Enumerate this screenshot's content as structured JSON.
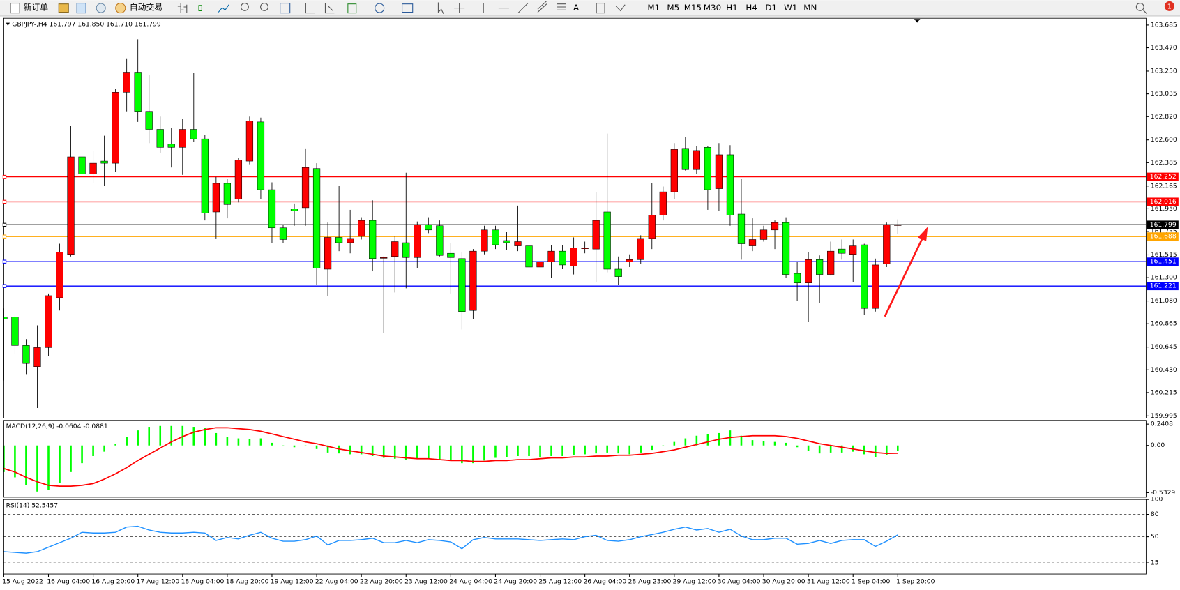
{
  "toolbar": {
    "new_order": "新订单",
    "auto_trade": "自动交易",
    "timeframes": [
      "M1",
      "M5",
      "M15",
      "M30",
      "H1",
      "H4",
      "D1",
      "W1",
      "MN"
    ],
    "badge": "1"
  },
  "chart_data": [
    {
      "type": "candlestick",
      "title": "GBPJPY-,H4 161.797 161.850 161.710 161.799",
      "categories": [
        "15 Aug 2022",
        null,
        null,
        null,
        "16 Aug 04:00",
        null,
        null,
        null,
        "16 Aug 20:00",
        null,
        null,
        null,
        "17 Aug 12:00",
        null,
        null,
        null,
        "18 Aug 04:00",
        null,
        null,
        null,
        "18 Aug 20:00",
        null,
        null,
        null,
        "19 Aug 12:00",
        null,
        null,
        null,
        "22 Aug 04:00",
        null,
        null,
        null,
        "22 Aug 20:00",
        null,
        null,
        null,
        "23 Aug 12:00",
        null,
        null,
        null,
        "24 Aug 04:00",
        null,
        null,
        null,
        "24 Aug 20:00",
        null,
        null,
        null,
        "25 Aug 12:00",
        null,
        null,
        null,
        "26 Aug 04:00",
        null,
        null,
        null,
        "28 Aug 23:00",
        null,
        null,
        null,
        "29 Aug 12:00",
        null,
        null,
        null,
        "30 Aug 04:00",
        null,
        null,
        null,
        "30 Aug 20:00",
        null,
        null,
        null,
        "31 Aug 12:00",
        null,
        null,
        null,
        "1 Sep 04:00",
        null,
        null,
        null,
        "1 Sep 20:00"
      ],
      "open": [
        160.93,
        160.93,
        160.66,
        160.46,
        160.64,
        161.11,
        161.52,
        162.44,
        162.28,
        162.4,
        162.38,
        163.05,
        163.24,
        162.87,
        162.7,
        162.56,
        162.53,
        162.7,
        162.61,
        161.92,
        162.19,
        162.04,
        162.4,
        162.77,
        162.13,
        161.77,
        161.95,
        161.96,
        162.33,
        161.38,
        161.68,
        161.63,
        161.69,
        161.84,
        161.49,
        161.5,
        161.63,
        161.49,
        161.8,
        161.79,
        161.53,
        161.48,
        160.99,
        161.55,
        161.75,
        161.65,
        161.6,
        161.6,
        161.4,
        161.45,
        161.55,
        161.41,
        161.58,
        161.57,
        161.92,
        161.38,
        161.45,
        161.47,
        161.67,
        161.89,
        162.11,
        162.52,
        162.32,
        162.53,
        162.14,
        162.46,
        161.9,
        161.6,
        161.66,
        161.75,
        161.82,
        161.34,
        161.25,
        161.47,
        161.33,
        161.57,
        161.52,
        161.61,
        161.01,
        161.43,
        161.797
      ],
      "high": [
        161.01,
        160.95,
        160.72,
        160.85,
        161.15,
        161.62,
        162.73,
        162.53,
        162.5,
        162.64,
        163.08,
        163.37,
        163.55,
        163.21,
        162.82,
        162.71,
        162.8,
        163.23,
        162.65,
        162.25,
        162.23,
        162.43,
        162.82,
        162.81,
        162.2,
        161.8,
        162.0,
        162.52,
        162.38,
        161.82,
        162.17,
        161.94,
        161.87,
        162.03,
        161.5,
        161.69,
        162.29,
        161.83,
        161.87,
        161.84,
        161.63,
        161.54,
        161.57,
        161.79,
        161.79,
        161.73,
        161.98,
        161.82,
        161.89,
        161.61,
        161.61,
        161.68,
        161.64,
        162.11,
        162.66,
        161.5,
        161.52,
        161.7,
        162.19,
        162.16,
        162.57,
        162.63,
        162.54,
        162.54,
        162.57,
        162.55,
        162.23,
        161.86,
        161.79,
        161.84,
        161.87,
        161.45,
        161.54,
        161.51,
        161.64,
        161.66,
        161.66,
        161.62,
        161.48,
        161.82,
        161.85
      ],
      "low": [
        160.33,
        160.58,
        160.39,
        160.07,
        160.56,
        160.99,
        161.5,
        162.13,
        162.19,
        162.17,
        162.3,
        162.87,
        162.77,
        162.57,
        162.48,
        162.34,
        162.27,
        162.58,
        161.84,
        161.67,
        161.86,
        162.01,
        162.37,
        162.04,
        161.63,
        161.63,
        161.79,
        161.79,
        161.23,
        161.13,
        161.55,
        161.53,
        161.66,
        161.36,
        160.78,
        161.16,
        161.2,
        161.39,
        161.72,
        161.5,
        161.15,
        160.81,
        160.91,
        161.52,
        161.57,
        161.56,
        161.55,
        161.3,
        161.31,
        161.3,
        161.38,
        161.33,
        161.53,
        161.26,
        161.35,
        161.23,
        161.4,
        161.43,
        161.57,
        161.84,
        162.04,
        162.31,
        162.28,
        161.94,
        161.93,
        161.79,
        161.47,
        161.55,
        161.64,
        161.57,
        161.3,
        161.08,
        160.88,
        161.06,
        161.32,
        161.47,
        161.26,
        160.95,
        160.98,
        161.4,
        161.71
      ],
      "close": [
        160.91,
        160.66,
        160.49,
        160.64,
        161.13,
        161.54,
        162.44,
        162.28,
        162.38,
        162.38,
        163.05,
        163.24,
        162.87,
        162.7,
        162.53,
        162.53,
        162.7,
        162.61,
        161.91,
        162.19,
        161.99,
        162.41,
        162.78,
        162.13,
        161.77,
        161.66,
        161.93,
        162.34,
        161.39,
        161.68,
        161.63,
        161.67,
        161.84,
        161.48,
        161.49,
        161.64,
        161.49,
        161.8,
        161.75,
        161.51,
        161.49,
        160.98,
        161.55,
        161.75,
        161.61,
        161.63,
        161.64,
        161.4,
        161.45,
        161.55,
        161.42,
        161.58,
        161.58,
        161.84,
        161.38,
        161.31,
        161.47,
        161.67,
        161.89,
        162.11,
        162.51,
        162.32,
        162.5,
        162.13,
        162.46,
        161.89,
        161.62,
        161.66,
        161.75,
        161.82,
        161.33,
        161.25,
        161.47,
        161.33,
        161.55,
        161.53,
        161.6,
        161.01,
        161.42,
        161.8,
        161.799
      ],
      "up_color": "#ff0000",
      "down_color": "#00ff00",
      "ylim": [
        159.974,
        163.749
      ],
      "yticks": [
        163.685,
        {
          "value": 163.47,
          "label": "163.470"
        },
        {
          "value": 163.25,
          "label": "163.250"
        },
        163.035,
        {
          "value": 162.82,
          "label": "162.820"
        },
        {
          "value": 162.6,
          "label": "162.600"
        },
        162.385,
        162.165,
        {
          "value": 161.95,
          "label": "161.950"
        },
        161.735,
        161.515,
        {
          "value": 161.3,
          "label": "161.300"
        },
        {
          "value": 161.08,
          "label": "161.080"
        },
        160.865,
        160.645,
        {
          "value": 160.43,
          "label": "160.430"
        },
        160.215,
        159.995
      ],
      "hlines": [
        {
          "value": 162.252,
          "color": "#ff0000"
        },
        {
          "value": 162.016,
          "color": "#ff0000"
        },
        {
          "value": 161.799,
          "color": "#000000"
        },
        {
          "value": 161.688,
          "color": "#ffa500"
        },
        {
          "value": 161.451,
          "color": "#0000ff"
        },
        {
          "value": 161.221,
          "color": "#0000ff"
        }
      ]
    },
    {
      "type": "macd",
      "title": "MACD(12,26,9) -0.0604 -0.0881",
      "ylim": [
        -0.584,
        0.283
      ],
      "yticks": [
        0.2408,
        {
          "value": 0,
          "label": "0.00"
        },
        -0.5329
      ],
      "series": [
        {
          "color": "#00ff00",
          "values": [
            -0.3,
            -0.36,
            -0.45,
            -0.52,
            -0.5,
            -0.42,
            -0.3,
            -0.2,
            -0.12,
            -0.07,
            0.02,
            0.1,
            0.17,
            0.21,
            0.22,
            0.22,
            0.22,
            0.21,
            0.2,
            0.14,
            0.1,
            0.08,
            0.07,
            0.08,
            0.03,
            -0.01,
            -0.02,
            -0.01,
            -0.04,
            -0.08,
            -0.09,
            -0.1,
            -0.1,
            -0.12,
            -0.14,
            -0.15,
            -0.16,
            -0.15,
            -0.15,
            -0.16,
            -0.17,
            -0.2,
            -0.2,
            -0.17,
            -0.14,
            -0.13,
            -0.12,
            -0.12,
            -0.13,
            -0.12,
            -0.12,
            -0.11,
            -0.1,
            -0.09,
            -0.08,
            -0.09,
            -0.1,
            -0.08,
            -0.05,
            -0.01,
            0.04,
            0.08,
            0.11,
            0.13,
            0.14,
            0.17,
            0.11,
            0.06,
            0.05,
            0.04,
            0.03,
            -0.02,
            -0.06,
            -0.09,
            -0.08,
            -0.08,
            -0.07,
            -0.1,
            -0.13,
            -0.11,
            -0.0604
          ]
        },
        {
          "color": "#ff0000",
          "values": [
            -0.26,
            -0.3,
            -0.36,
            -0.41,
            -0.45,
            -0.46,
            -0.46,
            -0.45,
            -0.43,
            -0.38,
            -0.32,
            -0.25,
            -0.17,
            -0.1,
            -0.03,
            0.04,
            0.1,
            0.15,
            0.18,
            0.2,
            0.2,
            0.19,
            0.18,
            0.16,
            0.13,
            0.1,
            0.07,
            0.04,
            0.02,
            -0.01,
            -0.04,
            -0.06,
            -0.08,
            -0.1,
            -0.12,
            -0.13,
            -0.14,
            -0.15,
            -0.15,
            -0.16,
            -0.17,
            -0.17,
            -0.18,
            -0.18,
            -0.17,
            -0.17,
            -0.16,
            -0.16,
            -0.15,
            -0.14,
            -0.14,
            -0.13,
            -0.13,
            -0.12,
            -0.12,
            -0.11,
            -0.11,
            -0.1,
            -0.09,
            -0.07,
            -0.05,
            -0.02,
            0.01,
            0.04,
            0.07,
            0.09,
            0.1,
            0.11,
            0.11,
            0.11,
            0.1,
            0.08,
            0.05,
            0.02,
            0.0,
            -0.02,
            -0.04,
            -0.06,
            -0.08,
            -0.09,
            -0.0881
          ]
        }
      ]
    },
    {
      "type": "line",
      "title": "RSI(14) 52.5457",
      "color": "#1e90ff",
      "ylim": [
        0,
        100
      ],
      "yticks": [
        100,
        80,
        50,
        15
      ],
      "levels": [
        80,
        50,
        15
      ],
      "values": [
        30,
        29,
        28,
        30,
        36,
        42,
        48,
        56,
        55,
        55,
        56,
        63,
        64,
        59,
        56,
        55,
        55,
        56,
        55,
        45,
        49,
        47,
        52,
        56,
        48,
        44,
        44,
        46,
        51,
        39,
        45,
        45,
        46,
        48,
        42,
        42,
        45,
        42,
        46,
        45,
        43,
        34,
        46,
        49,
        47,
        47,
        47,
        46,
        45,
        46,
        47,
        46,
        50,
        52,
        45,
        44,
        46,
        50,
        53,
        56,
        60,
        63,
        59,
        61,
        56,
        60,
        51,
        46,
        46,
        48,
        48,
        40,
        41,
        45,
        41,
        45,
        46,
        46,
        37,
        44,
        52.5457
      ]
    }
  ]
}
